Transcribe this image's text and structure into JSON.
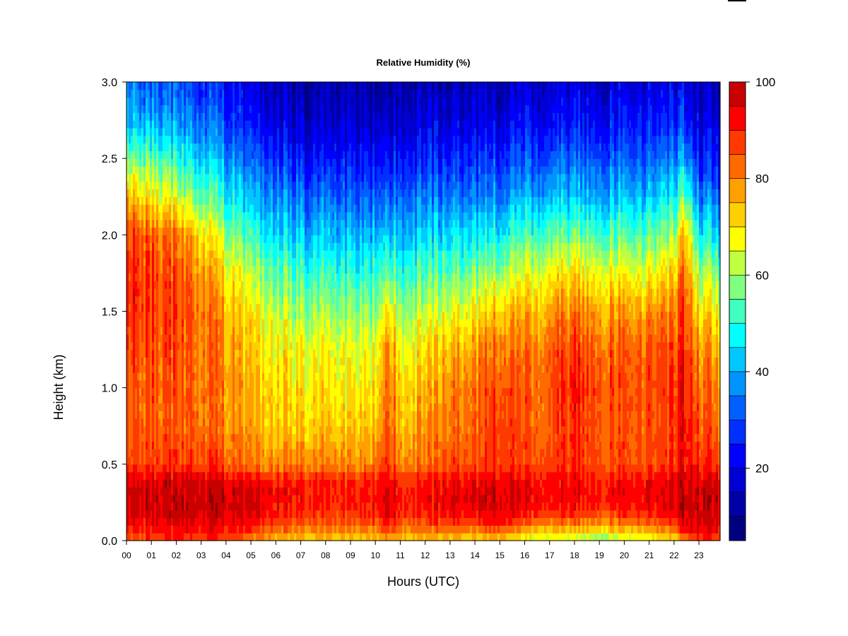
{
  "chart_data": {
    "type": "heatmap",
    "title": "Relative Humidity (%)",
    "xlabel": "Hours (UTC)",
    "ylabel": "Height (km)",
    "xlim": [
      0,
      23.85
    ],
    "ylim": [
      0,
      3.0
    ],
    "x_ticks": [
      {
        "value": 0,
        "label": "00"
      },
      {
        "value": 1,
        "label": "01"
      },
      {
        "value": 2,
        "label": "02"
      },
      {
        "value": 3,
        "label": "03"
      },
      {
        "value": 4,
        "label": "04"
      },
      {
        "value": 5,
        "label": "05"
      },
      {
        "value": 6,
        "label": "06"
      },
      {
        "value": 7,
        "label": "07"
      },
      {
        "value": 8,
        "label": "08"
      },
      {
        "value": 9,
        "label": "09"
      },
      {
        "value": 10,
        "label": "10"
      },
      {
        "value": 11,
        "label": "11"
      },
      {
        "value": 12,
        "label": "12"
      },
      {
        "value": 13,
        "label": "13"
      },
      {
        "value": 14,
        "label": "14"
      },
      {
        "value": 15,
        "label": "15"
      },
      {
        "value": 16,
        "label": "16"
      },
      {
        "value": 17,
        "label": "17"
      },
      {
        "value": 18,
        "label": "18"
      },
      {
        "value": 19,
        "label": "19"
      },
      {
        "value": 20,
        "label": "20"
      },
      {
        "value": 21,
        "label": "21"
      },
      {
        "value": 22,
        "label": "22"
      },
      {
        "value": 23,
        "label": "23"
      }
    ],
    "y_ticks": [
      {
        "value": 0.0,
        "label": "0.0"
      },
      {
        "value": 0.5,
        "label": "0.5"
      },
      {
        "value": 1.0,
        "label": "1.0"
      },
      {
        "value": 1.5,
        "label": "1.5"
      },
      {
        "value": 2.0,
        "label": "2.0"
      },
      {
        "value": 2.5,
        "label": "2.5"
      },
      {
        "value": 3.0,
        "label": "3.0"
      }
    ],
    "heights": [
      0.0,
      0.1,
      0.2,
      0.3,
      0.4,
      0.5,
      0.75,
      1.0,
      1.25,
      1.5,
      1.75,
      2.0,
      2.25,
      2.5,
      2.75,
      3.0
    ],
    "rh_profiles": [
      {
        "hour": 0.0,
        "values": [
          86,
          93,
          97,
          97,
          95,
          88,
          85,
          86,
          87,
          90,
          91,
          88,
          76,
          58,
          42,
          36
        ]
      },
      {
        "hour": 1.0,
        "values": [
          86,
          93,
          97,
          97,
          95,
          88,
          85,
          85,
          86,
          88,
          88,
          84,
          70,
          55,
          40,
          32
        ]
      },
      {
        "hour": 2.0,
        "values": [
          88,
          94,
          98,
          98,
          96,
          88,
          84,
          84,
          85,
          86,
          85,
          80,
          64,
          50,
          37,
          30
        ]
      },
      {
        "hour": 3.0,
        "values": [
          88,
          95,
          98,
          98,
          96,
          88,
          83,
          83,
          83,
          83,
          80,
          72,
          56,
          45,
          34,
          27
        ]
      },
      {
        "hour": 4.0,
        "values": [
          86,
          94,
          97,
          97,
          95,
          85,
          80,
          80,
          79,
          76,
          70,
          60,
          48,
          38,
          29,
          23
        ]
      },
      {
        "hour": 5.0,
        "values": [
          80,
          92,
          96,
          96,
          94,
          82,
          77,
          76,
          74,
          70,
          62,
          52,
          42,
          33,
          24,
          19
        ]
      },
      {
        "hour": 6.0,
        "values": [
          74,
          87,
          93,
          94,
          91,
          80,
          74,
          72,
          69,
          64,
          56,
          46,
          37,
          28,
          20,
          15
        ]
      },
      {
        "hour": 7.0,
        "values": [
          72,
          84,
          90,
          92,
          90,
          80,
          73,
          70,
          67,
          60,
          52,
          42,
          33,
          24,
          16,
          12
        ]
      },
      {
        "hour": 8.0,
        "values": [
          72,
          83,
          89,
          91,
          89,
          80,
          73,
          69,
          66,
          59,
          51,
          41,
          32,
          23,
          16,
          12
        ]
      },
      {
        "hour": 9.0,
        "values": [
          71,
          83,
          89,
          90,
          88,
          79,
          72,
          68,
          65,
          58,
          50,
          40,
          31,
          23,
          16,
          12
        ]
      },
      {
        "hour": 10.0,
        "values": [
          72,
          84,
          91,
          92,
          90,
          81,
          74,
          70,
          66,
          59,
          51,
          41,
          32,
          23,
          16,
          12
        ]
      },
      {
        "hour": 10.5,
        "values": [
          78,
          92,
          97,
          97,
          95,
          90,
          86,
          85,
          82,
          72,
          57,
          44,
          34,
          25,
          17,
          13
        ]
      },
      {
        "hour": 11.0,
        "values": [
          72,
          84,
          90,
          91,
          89,
          81,
          75,
          72,
          67,
          60,
          52,
          42,
          33,
          24,
          17,
          13
        ]
      },
      {
        "hour": 12.0,
        "values": [
          72,
          84,
          91,
          92,
          90,
          82,
          77,
          74,
          70,
          62,
          53,
          43,
          34,
          25,
          18,
          13
        ]
      },
      {
        "hour": 13.0,
        "values": [
          72,
          87,
          94,
          95,
          93,
          86,
          82,
          80,
          75,
          66,
          56,
          45,
          35,
          26,
          18,
          14
        ]
      },
      {
        "hour": 14.0,
        "values": [
          70,
          86,
          94,
          95,
          93,
          86,
          83,
          82,
          77,
          68,
          57,
          46,
          36,
          27,
          19,
          15
        ]
      },
      {
        "hour": 15.0,
        "values": [
          72,
          92,
          97,
          97,
          95,
          90,
          90,
          88,
          84,
          75,
          62,
          48,
          37,
          28,
          20,
          15
        ]
      },
      {
        "hour": 16.0,
        "values": [
          64,
          82,
          92,
          94,
          92,
          86,
          84,
          83,
          80,
          74,
          65,
          52,
          40,
          30,
          22,
          16
        ]
      },
      {
        "hour": 17.0,
        "values": [
          62,
          80,
          91,
          93,
          92,
          87,
          85,
          86,
          84,
          78,
          68,
          54,
          41,
          31,
          22,
          17
        ]
      },
      {
        "hour": 18.0,
        "values": [
          60,
          80,
          91,
          93,
          92,
          88,
          88,
          90,
          87,
          80,
          70,
          55,
          42,
          32,
          23,
          17
        ]
      },
      {
        "hour": 19.0,
        "values": [
          57,
          78,
          90,
          92,
          91,
          87,
          86,
          88,
          85,
          79,
          69,
          55,
          42,
          32,
          24,
          18
        ]
      },
      {
        "hour": 20.0,
        "values": [
          60,
          80,
          91,
          93,
          91,
          86,
          85,
          86,
          84,
          78,
          67,
          54,
          42,
          32,
          24,
          18
        ]
      },
      {
        "hour": 21.0,
        "values": [
          64,
          82,
          92,
          94,
          92,
          86,
          85,
          86,
          84,
          78,
          66,
          54,
          42,
          32,
          24,
          18
        ]
      },
      {
        "hour": 22.0,
        "values": [
          68,
          86,
          94,
          95,
          93,
          88,
          87,
          88,
          86,
          81,
          72,
          60,
          46,
          34,
          25,
          19
        ]
      },
      {
        "hour": 22.5,
        "values": [
          84,
          96,
          99,
          99,
          97,
          94,
          94,
          93,
          90,
          88,
          84,
          76,
          58,
          40,
          28,
          20
        ]
      },
      {
        "hour": 23.0,
        "values": [
          88,
          96,
          98,
          98,
          96,
          90,
          86,
          84,
          80,
          72,
          62,
          48,
          36,
          26,
          19,
          15
        ]
      },
      {
        "hour": 23.85,
        "values": [
          88,
          95,
          97,
          97,
          95,
          88,
          83,
          80,
          76,
          68,
          58,
          45,
          34,
          25,
          18,
          14
        ]
      }
    ],
    "colorbar": {
      "min": 5,
      "max": 100,
      "step": 5,
      "ticks": [
        {
          "value": 20,
          "label": "20"
        },
        {
          "value": 40,
          "label": "40"
        },
        {
          "value": 60,
          "label": "60"
        },
        {
          "value": 80,
          "label": "80"
        },
        {
          "value": 100,
          "label": "100"
        }
      ],
      "colors": [
        "#00007f",
        "#0000a8",
        "#0000d4",
        "#0000ff",
        "#0030ff",
        "#0060ff",
        "#0094ff",
        "#00c8ff",
        "#00ffff",
        "#40ffbf",
        "#80ff80",
        "#bfff40",
        "#ffff00",
        "#ffd000",
        "#ff9f00",
        "#ff6a00",
        "#ff3a00",
        "#ff0000",
        "#c80000"
      ],
      "top_color": "#8b0000"
    },
    "grid": false,
    "legend": "right"
  }
}
